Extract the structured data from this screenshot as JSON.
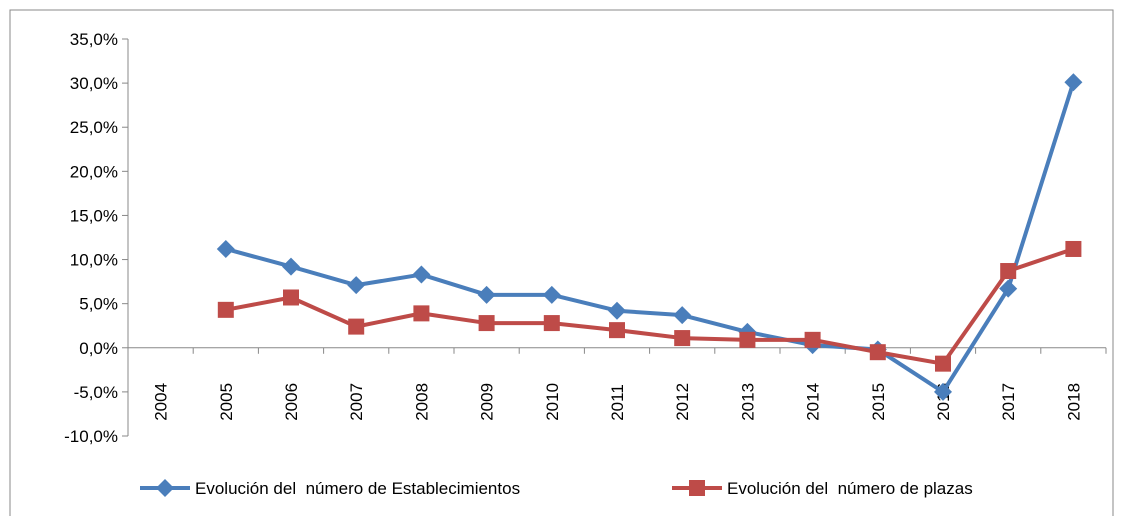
{
  "chart_data": {
    "type": "line",
    "categories": [
      "2004",
      "2005",
      "2006",
      "2007",
      "2008",
      "2009",
      "2010",
      "2011",
      "2012",
      "2013",
      "2014",
      "2015",
      "2016",
      "2017",
      "2018"
    ],
    "series": [
      {
        "name": "Evolución del  número de Establecimientos",
        "color": "#4a7ebb",
        "marker": "diamond",
        "values": [
          null,
          11.2,
          9.2,
          7.1,
          8.3,
          6.0,
          6.0,
          4.2,
          3.7,
          1.8,
          0.3,
          -0.2,
          -5.0,
          6.7,
          30.1
        ]
      },
      {
        "name": "Evolución del  número de plazas",
        "color": "#be4b48",
        "marker": "square",
        "values": [
          null,
          4.3,
          5.7,
          2.4,
          3.9,
          2.8,
          2.8,
          2.0,
          1.1,
          0.9,
          0.9,
          -0.5,
          -1.8,
          8.7,
          11.2
        ]
      }
    ],
    "ylim": [
      -10,
      35
    ],
    "yticks": [
      {
        "value": -10,
        "label": "-10,0%"
      },
      {
        "value": -5,
        "label": "-5,0%"
      },
      {
        "value": 0,
        "label": "0,0%"
      },
      {
        "value": 5,
        "label": "5,0%"
      },
      {
        "value": 10,
        "label": "10,0%"
      },
      {
        "value": 15,
        "label": "15,0%"
      },
      {
        "value": 20,
        "label": "20,0%"
      },
      {
        "value": 25,
        "label": "25,0%"
      },
      {
        "value": 30,
        "label": "30,0%"
      },
      {
        "value": 35,
        "label": "35,0%"
      }
    ],
    "legend": "bottom"
  }
}
